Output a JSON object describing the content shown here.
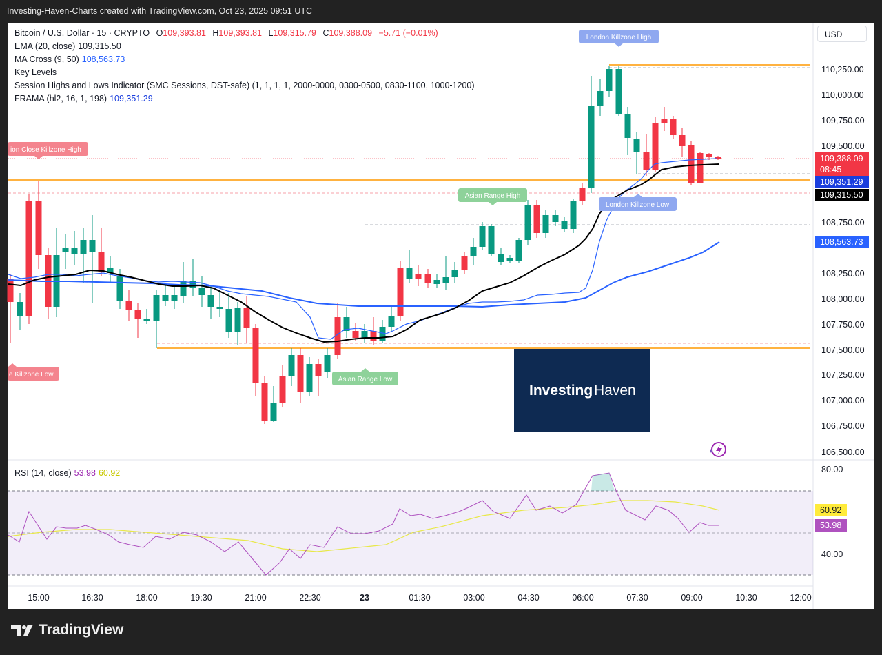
{
  "header": "Investing-Haven-Charts created with TradingView.com, Oct 23, 2025 09:51 UTC",
  "footer": {
    "brand": "TradingView"
  },
  "symbol": {
    "name": "Bitcoin / U.S. Dollar · 15 · CRYPTO",
    "ohlc": {
      "o": "109,393.81",
      "h": "109,393.81",
      "l": "109,315.79",
      "c": "109,388.09",
      "chg": "−5.71 (−0.01%)"
    }
  },
  "indicators": {
    "ema": {
      "label": "EMA (20, close)",
      "value": "109,315.50"
    },
    "ma": {
      "label": "MA Cross (9, 50)",
      "value": "108,563.73"
    },
    "keylevels": {
      "label": "Key Levels"
    },
    "sessions": {
      "label": "Session Highs and Lows Indicator (SMC Sessions, DST-safe) (1, 1, 1, 1, 2000-0000, 0300-0500, 0830-1100, 1000-1200)"
    },
    "frama": {
      "label": "FRAMA (hl2, 16, 1, 198)",
      "value": "109,351.29"
    },
    "rsi": {
      "label": "RSI (14, close)",
      "value": "53.98",
      "ma": "60.92"
    }
  },
  "currency": "USD",
  "price_axis": [
    "110,250.00",
    "110,000.00",
    "109,750.00",
    "109,500.00",
    "108,750.00",
    "108,250.00",
    "108,000.00",
    "107,750.00",
    "107,500.00",
    "107,250.00",
    "107,000.00",
    "106,750.00",
    "106,500.00"
  ],
  "price_labels": {
    "last": "109,388.09",
    "countdown": "08:45",
    "frama": "109,351.29",
    "ema": "109,315.50",
    "ma": "108,563.73"
  },
  "rsi_axis": [
    "80.00",
    "40.00"
  ],
  "rsi_labels": {
    "ma": "60.92",
    "rsi": "53.98"
  },
  "time_axis": [
    "15:00",
    "16:30",
    "18:00",
    "19:30",
    "21:00",
    "22:30",
    "23",
    "01:30",
    "03:00",
    "04:30",
    "06:00",
    "07:30",
    "09:00",
    "10:30",
    "12:00"
  ],
  "session_labels": {
    "lon_high": "London Killzone High",
    "lon_low": "London Killzone Low",
    "asia_high": "Asian Range High",
    "asia_low": "Asian Range Low",
    "lc_high": "ion Close Killzone High",
    "lc_low": "e Killzone Low"
  },
  "watermark": {
    "part1": "Investing",
    "part2": "Haven"
  },
  "colors": {
    "up": "#089981",
    "down": "#f23645",
    "ema": "#000000",
    "ma_fast": "#2962ff",
    "ma_slow": "#2962ff",
    "level": "#ff9800",
    "rsi": "#9c27b0",
    "rsi_ma": "#e8e84a"
  }
}
